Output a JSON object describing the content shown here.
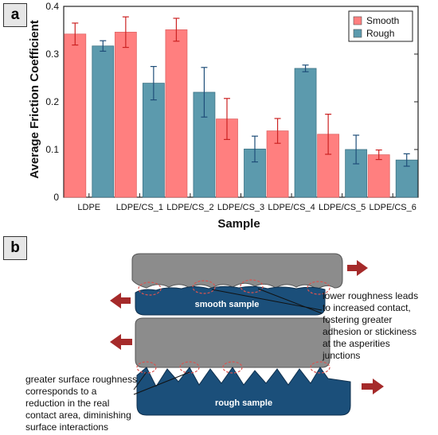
{
  "panels": {
    "a": "a",
    "b": "b"
  },
  "chart_data": {
    "type": "bar",
    "xlabel": "Sample",
    "ylabel": "Average Friction Coefficient",
    "ylim": [
      0,
      0.4
    ],
    "yticks": [
      0,
      0.1,
      0.2,
      0.3,
      0.4
    ],
    "ytick_labels": [
      "0",
      "0.1",
      "0.2",
      "0.3",
      "0.4"
    ],
    "legend_position": "top-right",
    "grid": false,
    "categories": [
      "LDPE",
      "LDPE/CS_1",
      "LDPE/CS_2",
      "LDPE/CS_3",
      "LDPE/CS_4",
      "LDPE/CS_5",
      "LDPE/CS_6"
    ],
    "series": [
      {
        "name": "Smooth",
        "color": "#ff7f7f",
        "error_color": "#cc2222",
        "values": [
          0.342,
          0.346,
          0.351,
          0.164,
          0.139,
          0.132,
          0.089
        ],
        "errors": [
          0.023,
          0.032,
          0.024,
          0.043,
          0.026,
          0.042,
          0.01
        ]
      },
      {
        "name": "Rough",
        "color": "#5c9aad",
        "error_color": "#1f4e79",
        "values": [
          0.317,
          0.239,
          0.22,
          0.101,
          0.27,
          0.1,
          0.078
        ],
        "errors": [
          0.011,
          0.035,
          0.052,
          0.027,
          0.007,
          0.03,
          0.013
        ]
      }
    ]
  },
  "diagram": {
    "smooth_label": "smooth sample",
    "rough_label": "rough sample",
    "note_right": [
      "lower roughness leads",
      "to increased contact,",
      "fostering greater",
      "adhesion or stickiness",
      "at the asperities",
      "junctions"
    ],
    "note_left": [
      "greater surface roughness",
      "corresponds to a",
      "reduction in the real",
      "contact area, diminishing",
      "surface interactions"
    ],
    "colors": {
      "gray_block": "#8c8c8c",
      "navy_block": "#1b4f7a",
      "arrow": "#a52a2a",
      "dash_circle": "#d9534f"
    }
  }
}
